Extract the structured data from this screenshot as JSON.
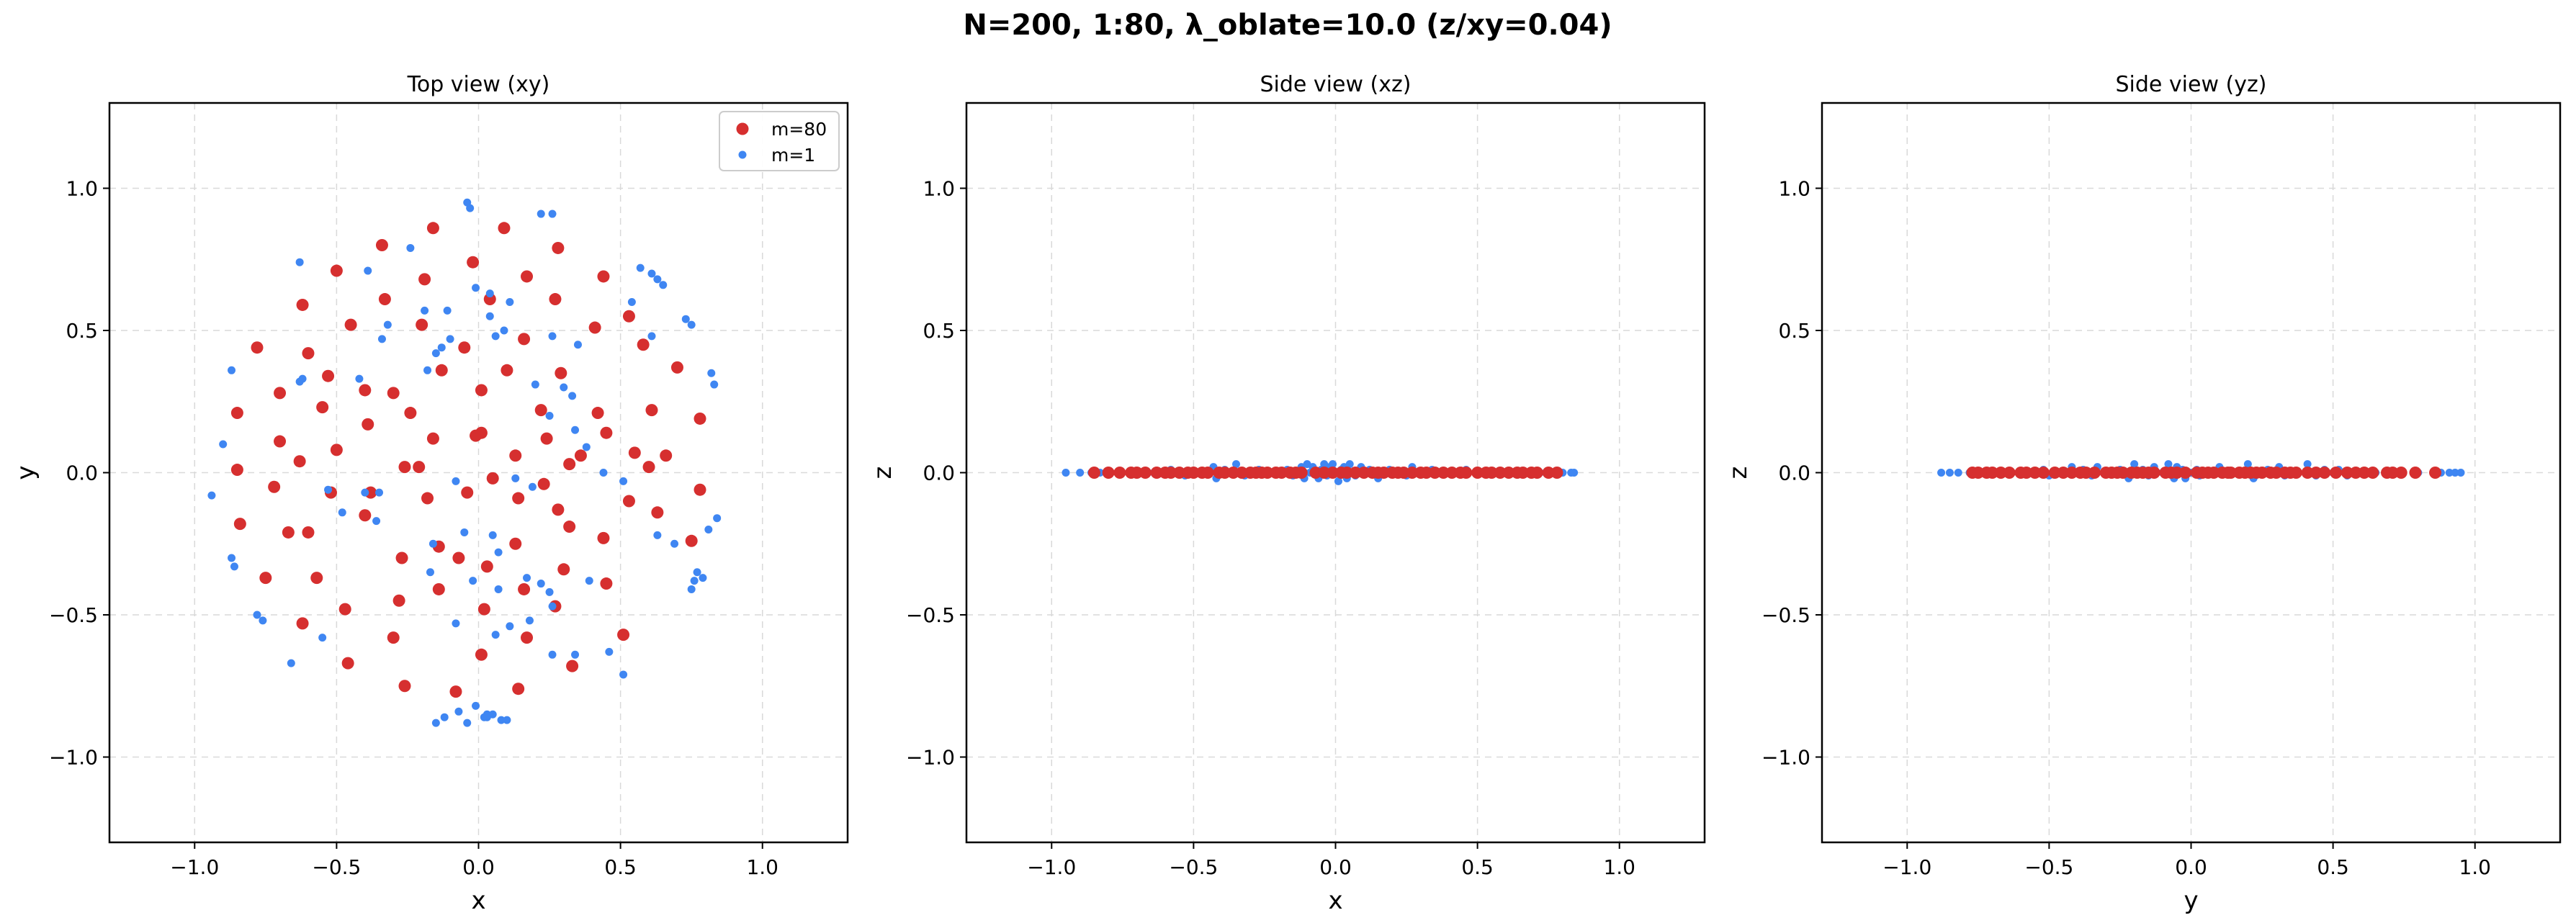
{
  "figure": {
    "suptitle": "N=200, 1:80, λ_oblate=10.0  (z/xy=0.04)"
  },
  "colors": {
    "heavy": "#d62f2f",
    "light": "#3f86f2"
  },
  "chart_data": [
    {
      "type": "scatter",
      "title": "Top view (xy)",
      "xlabel": "x",
      "ylabel": "y",
      "xlim": [
        -1.3,
        1.3
      ],
      "ylim": [
        -1.3,
        1.3
      ],
      "xticks": [
        -1.0,
        -0.5,
        0.0,
        0.5,
        1.0
      ],
      "yticks": [
        -1.0,
        -0.5,
        0.0,
        0.5,
        1.0
      ],
      "xtick_labels": [
        "−1.0",
        "−0.5",
        "0.0",
        "0.5",
        "1.0"
      ],
      "ytick_labels": [
        "−1.0",
        "−0.5",
        "0.0",
        "0.5",
        "1.0"
      ],
      "grid": true,
      "legend": "top-right",
      "series": [
        {
          "name": "m=80",
          "color": "#d62f2f",
          "x": [
            -0.16,
            0.09,
            0.28,
            -0.34,
            -0.02,
            -0.5,
            -0.19,
            0.17,
            0.44,
            -0.62,
            -0.33,
            0.04,
            0.27,
            0.53,
            -0.78,
            -0.6,
            -0.45,
            -0.2,
            -0.05,
            0.16,
            0.41,
            0.58,
            -0.7,
            -0.53,
            -0.3,
            -0.13,
            0.1,
            0.29,
            0.7,
            -0.85,
            -0.4,
            -0.24,
            0.01,
            0.22,
            0.42,
            0.61,
            0.78,
            -0.7,
            -0.55,
            -0.39,
            -0.16,
            -0.01,
            0.13,
            0.36,
            0.55,
            0.66,
            -0.85,
            -0.63,
            -0.5,
            -0.21,
            0.01,
            0.24,
            0.45,
            0.78,
            -0.72,
            -0.52,
            -0.38,
            -0.26,
            0.05,
            0.23,
            0.32,
            0.6,
            -0.84,
            -0.67,
            -0.18,
            -0.04,
            0.14,
            0.28,
            0.53,
            0.75,
            -0.6,
            -0.4,
            -0.14,
            0.13,
            0.32,
            0.44,
            0.63,
            -0.75,
            -0.57,
            -0.27,
            -0.07,
            0.03,
            0.3,
            0.45,
            -0.62,
            -0.47,
            -0.28,
            -0.14,
            0.02,
            0.16,
            0.27,
            -0.46,
            -0.3,
            0.17,
            0.51,
            -0.26,
            -0.08,
            0.14,
            0.33,
            0.01
          ],
          "y": [
            0.86,
            0.86,
            0.79,
            0.8,
            0.74,
            0.71,
            0.68,
            0.69,
            0.69,
            0.59,
            0.61,
            0.61,
            0.61,
            0.55,
            0.44,
            0.42,
            0.52,
            0.52,
            0.44,
            0.47,
            0.51,
            0.45,
            0.28,
            0.34,
            0.28,
            0.36,
            0.36,
            0.35,
            0.37,
            0.21,
            0.29,
            0.21,
            0.29,
            0.22,
            0.21,
            0.22,
            0.19,
            0.11,
            0.23,
            0.17,
            0.12,
            0.13,
            0.06,
            0.06,
            0.07,
            0.06,
            0.01,
            0.04,
            0.08,
            0.02,
            0.14,
            0.12,
            0.14,
            -0.06,
            -0.05,
            -0.07,
            -0.07,
            0.02,
            -0.02,
            -0.04,
            0.03,
            0.02,
            -0.18,
            -0.21,
            -0.09,
            -0.07,
            -0.09,
            -0.13,
            -0.1,
            -0.24,
            -0.21,
            -0.15,
            -0.26,
            -0.25,
            -0.19,
            -0.23,
            -0.14,
            -0.37,
            -0.37,
            -0.3,
            -0.3,
            -0.33,
            -0.34,
            -0.39,
            -0.53,
            -0.48,
            -0.45,
            -0.41,
            -0.48,
            -0.41,
            -0.47,
            -0.67,
            -0.58,
            -0.58,
            -0.57,
            -0.75,
            -0.77,
            -0.76,
            -0.68,
            -0.64
          ]
        },
        {
          "name": "m=1",
          "color": "#3f86f2",
          "x": [
            -0.04,
            -0.03,
            0.22,
            0.26,
            -0.63,
            -0.39,
            -0.24,
            0.57,
            0.61,
            0.63,
            0.65,
            0.54,
            0.73,
            0.75,
            -0.11,
            -0.01,
            0.04,
            0.11,
            -0.87,
            0.82,
            0.83,
            -0.32,
            -0.1,
            0.35,
            -0.9,
            -0.94,
            -0.87,
            -0.86,
            -0.78,
            -0.76,
            -0.66,
            -0.55,
            -0.63,
            -0.62,
            -0.42,
            -0.34,
            -0.13,
            -0.19,
            0.84,
            0.81,
            0.77,
            0.76,
            0.75,
            0.79,
            0.69,
            0.63,
            0.61,
            -0.18,
            -0.15,
            0.06,
            0.09,
            0.26,
            0.3,
            0.33,
            0.2,
            0.25,
            0.34,
            0.38,
            0.04,
            -0.16,
            -0.05,
            0.05,
            0.07,
            -0.4,
            -0.35,
            -0.08,
            0.13,
            0.19,
            0.44,
            0.51,
            -0.17,
            -0.02,
            0.07,
            0.17,
            0.22,
            0.25,
            -0.53,
            -0.48,
            -0.36,
            0.11,
            0.18,
            0.26,
            0.39,
            0.06,
            -0.08,
            0.26,
            0.34,
            0.46,
            0.51,
            -0.04,
            0.1,
            0.03,
            -0.07,
            -0.01,
            0.02,
            0.03,
            0.05,
            0.08,
            -0.12,
            -0.15
          ],
          "y": [
            0.95,
            0.93,
            0.91,
            0.91,
            0.74,
            0.71,
            0.79,
            0.72,
            0.7,
            0.68,
            0.66,
            0.6,
            0.54,
            0.52,
            0.57,
            0.65,
            0.63,
            0.6,
            0.36,
            0.35,
            0.31,
            0.52,
            0.47,
            0.45,
            0.1,
            -0.08,
            -0.3,
            -0.33,
            -0.5,
            -0.52,
            -0.67,
            -0.58,
            0.32,
            0.33,
            0.33,
            0.47,
            0.44,
            0.57,
            -0.16,
            -0.2,
            -0.35,
            -0.38,
            -0.41,
            -0.37,
            -0.25,
            -0.22,
            0.48,
            0.36,
            0.42,
            0.48,
            0.5,
            0.48,
            0.3,
            0.27,
            0.31,
            0.2,
            0.15,
            0.09,
            0.55,
            -0.25,
            -0.21,
            -0.22,
            -0.28,
            -0.07,
            -0.07,
            -0.03,
            -0.02,
            -0.05,
            0.0,
            -0.03,
            -0.35,
            -0.38,
            -0.41,
            -0.37,
            -0.39,
            -0.42,
            -0.06,
            -0.14,
            -0.17,
            -0.54,
            -0.52,
            -0.47,
            -0.38,
            -0.57,
            -0.53,
            -0.64,
            -0.64,
            -0.63,
            -0.71,
            -0.88,
            -0.87,
            -0.86,
            -0.84,
            -0.82,
            -0.86,
            -0.85,
            -0.85,
            -0.87,
            -0.86,
            -0.88
          ]
        }
      ]
    },
    {
      "type": "scatter",
      "title": "Side view (xz)",
      "xlabel": "x",
      "ylabel": "z",
      "xlim": [
        -1.3,
        1.3
      ],
      "ylim": [
        -1.3,
        1.3
      ],
      "xticks": [
        -1.0,
        -0.5,
        0.0,
        0.5,
        1.0
      ],
      "yticks": [
        -1.0,
        -0.5,
        0.0,
        0.5,
        1.0
      ],
      "xtick_labels": [
        "−1.0",
        "−0.5",
        "0.0",
        "0.5",
        "1.0"
      ],
      "ytick_labels": [
        "−1.0",
        "−0.5",
        "0.0",
        "0.5",
        "1.0"
      ],
      "grid": true,
      "series": [
        {
          "color": "#3f86f2",
          "x": [
            -0.95,
            -0.9,
            -0.86,
            -0.83,
            -0.7,
            -0.64,
            -0.58,
            -0.53,
            -0.47,
            -0.43,
            -0.42,
            -0.39,
            -0.36,
            -0.35,
            -0.32,
            -0.3,
            -0.27,
            -0.24,
            -0.19,
            -0.17,
            -0.15,
            -0.12,
            -0.11,
            -0.1,
            -0.09,
            -0.08,
            -0.06,
            -0.05,
            -0.04,
            -0.03,
            -0.02,
            -0.01,
            0.01,
            0.02,
            0.03,
            0.04,
            0.05,
            0.06,
            0.07,
            0.09,
            0.1,
            0.12,
            0.15,
            0.17,
            0.19,
            0.22,
            0.25,
            0.27,
            0.31,
            0.34,
            0.39,
            0.42,
            0.46,
            0.5,
            0.55,
            0.6,
            0.65,
            0.7,
            0.74,
            0.78,
            0.8,
            0.83,
            0.84
          ],
          "y": [
            0,
            0,
            0,
            0,
            0,
            0,
            0.01,
            -0.01,
            0,
            0.02,
            -0.02,
            0.01,
            0,
            0.03,
            -0.01,
            0,
            0.01,
            0,
            0,
            0.01,
            -0.01,
            0.02,
            -0.02,
            0.03,
            0,
            0.02,
            -0.02,
            0.01,
            0.03,
            -0.01,
            0.02,
            0.03,
            -0.03,
            0.01,
            0.02,
            -0.02,
            0.03,
            0,
            -0.01,
            0.02,
            0,
            0.01,
            -0.02,
            0,
            0.01,
            0,
            -0.01,
            0.02,
            0,
            0.01,
            0,
            0,
            0.01,
            0,
            0,
            0,
            0,
            0,
            0,
            0,
            0,
            0,
            0
          ]
        },
        {
          "color": "#d62f2f",
          "x": [
            -0.85,
            -0.8,
            -0.76,
            -0.72,
            -0.7,
            -0.67,
            -0.63,
            -0.6,
            -0.58,
            -0.55,
            -0.52,
            -0.5,
            -0.47,
            -0.45,
            -0.41,
            -0.39,
            -0.36,
            -0.33,
            -0.3,
            -0.28,
            -0.26,
            -0.24,
            -0.21,
            -0.19,
            -0.16,
            -0.14,
            -0.12,
            -0.07,
            -0.04,
            -0.01,
            0.02,
            0.04,
            0.07,
            0.1,
            0.13,
            0.15,
            0.17,
            0.2,
            0.22,
            0.24,
            0.27,
            0.3,
            0.32,
            0.35,
            0.38,
            0.41,
            0.44,
            0.46,
            0.5,
            0.53,
            0.55,
            0.58,
            0.61,
            0.64,
            0.66,
            0.69,
            0.71,
            0.75,
            0.78
          ],
          "y": [
            0,
            0,
            0,
            0,
            0,
            0,
            0,
            0,
            0,
            0,
            0,
            0,
            0,
            0,
            0,
            0,
            0,
            0,
            0,
            0,
            0,
            0,
            0,
            0,
            0,
            0,
            0,
            0,
            0,
            0,
            0,
            0,
            0,
            0,
            0,
            0,
            0,
            0,
            0,
            0,
            0,
            0,
            0,
            0,
            0,
            0,
            0,
            0,
            0,
            0,
            0,
            0,
            0,
            0,
            0,
            0,
            0,
            0,
            0
          ]
        }
      ]
    },
    {
      "type": "scatter",
      "title": "Side view (yz)",
      "xlabel": "y",
      "ylabel": "z",
      "xlim": [
        -1.3,
        1.3
      ],
      "ylim": [
        -1.3,
        1.3
      ],
      "xticks": [
        -1.0,
        -0.5,
        0.0,
        0.5,
        1.0
      ],
      "yticks": [
        -1.0,
        -0.5,
        0.0,
        0.5,
        1.0
      ],
      "xtick_labels": [
        "−1.0",
        "−0.5",
        "0.0",
        "0.5",
        "1.0"
      ],
      "ytick_labels": [
        "−1.0",
        "−0.5",
        "0.0",
        "0.5",
        "1.0"
      ],
      "grid": true,
      "series": [
        {
          "color": "#3f86f2",
          "x": [
            -0.88,
            -0.85,
            -0.82,
            -0.78,
            -0.71,
            -0.64,
            -0.58,
            -0.52,
            -0.5,
            -0.42,
            -0.38,
            -0.35,
            -0.33,
            -0.3,
            -0.25,
            -0.22,
            -0.2,
            -0.17,
            -0.15,
            -0.13,
            -0.1,
            -0.08,
            -0.06,
            -0.05,
            -0.03,
            -0.02,
            0.0,
            0.02,
            0.03,
            0.06,
            0.1,
            0.15,
            0.2,
            0.22,
            0.27,
            0.31,
            0.33,
            0.36,
            0.41,
            0.44,
            0.47,
            0.5,
            0.52,
            0.55,
            0.6,
            0.65,
            0.7,
            0.73,
            0.8,
            0.88,
            0.91,
            0.93,
            0.95
          ],
          "y": [
            0,
            0,
            0,
            0,
            0,
            0,
            0,
            0.01,
            -0.01,
            0.02,
            0.01,
            -0.01,
            0.02,
            0,
            0.01,
            -0.02,
            0.03,
            0.01,
            -0.01,
            0.02,
            0,
            0.03,
            -0.02,
            0.02,
            0.01,
            -0.02,
            0,
            0.01,
            -0.01,
            0,
            0.02,
            0,
            0.03,
            -0.02,
            0.01,
            0.02,
            -0.01,
            0,
            0.03,
            -0.01,
            0.01,
            0,
            0.01,
            -0.01,
            0,
            0,
            0,
            0,
            0,
            0,
            0,
            0,
            0
          ]
        },
        {
          "color": "#d62f2f",
          "x": [
            -0.77,
            -0.75,
            -0.72,
            -0.7,
            -0.67,
            -0.64,
            -0.6,
            -0.58,
            -0.55,
            -0.52,
            -0.48,
            -0.45,
            -0.42,
            -0.39,
            -0.37,
            -0.34,
            -0.3,
            -0.28,
            -0.26,
            -0.24,
            -0.21,
            -0.19,
            -0.17,
            -0.15,
            -0.13,
            -0.09,
            -0.07,
            -0.05,
            -0.02,
            0.02,
            0.04,
            0.06,
            0.08,
            0.11,
            0.13,
            0.14,
            0.17,
            0.19,
            0.21,
            0.23,
            0.25,
            0.28,
            0.3,
            0.33,
            0.35,
            0.37,
            0.41,
            0.44,
            0.47,
            0.51,
            0.55,
            0.58,
            0.61,
            0.64,
            0.69,
            0.71,
            0.74,
            0.79,
            0.86
          ],
          "y": [
            0,
            0,
            0,
            0,
            0,
            0,
            0,
            0,
            0,
            0,
            0,
            0,
            0,
            0,
            0,
            0,
            0,
            0,
            0,
            0,
            0,
            0,
            0,
            0,
            0,
            0,
            0,
            0,
            0,
            0,
            0,
            0,
            0,
            0,
            0,
            0,
            0,
            0,
            0,
            0,
            0,
            0,
            0,
            0,
            0,
            0,
            0,
            0,
            0,
            0,
            0,
            0,
            0,
            0,
            0,
            0,
            0,
            0,
            0
          ]
        }
      ]
    }
  ]
}
